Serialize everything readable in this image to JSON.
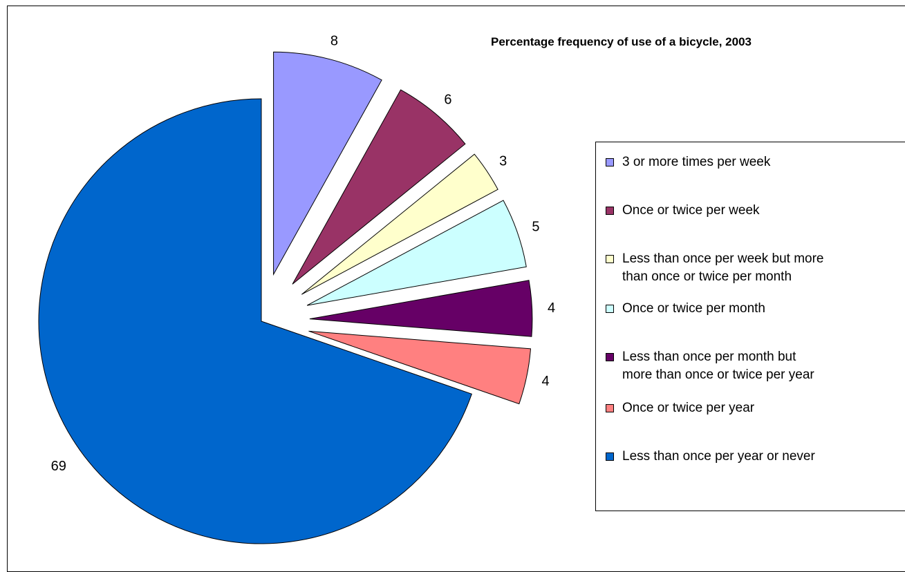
{
  "chart_data": {
    "type": "pie",
    "title": "Percentage frequency of use of a bicycle, 2003",
    "slices": [
      {
        "label": "3 or more times per week",
        "value": 8,
        "color": "#9999FF"
      },
      {
        "label": "Once or twice per week",
        "value": 6,
        "color": "#993366"
      },
      {
        "label": "Less than once per week but more than once or twice per month",
        "value": 3,
        "color": "#FFFFCC"
      },
      {
        "label": "Once or twice per month",
        "value": 5,
        "color": "#CCFFFF"
      },
      {
        "label": "Less than once per month but more than once or twice per year",
        "value": 4,
        "color": "#660066"
      },
      {
        "label": "Once or twice per year",
        "value": 4,
        "color": "#FF8080"
      },
      {
        "label": "Less than once per year or never",
        "value": 69,
        "color": "#0066CC"
      }
    ],
    "exploded": true,
    "legend_position": "right",
    "legend": [
      "3 or more times per week",
      "Once or twice per week",
      [
        "Less than once per week but more",
        "than once or twice per month"
      ],
      "Once or twice per month",
      [
        "Less than once per month but",
        "more than once or twice per year"
      ],
      "Once or twice per year",
      "Less than once per year or never"
    ]
  }
}
